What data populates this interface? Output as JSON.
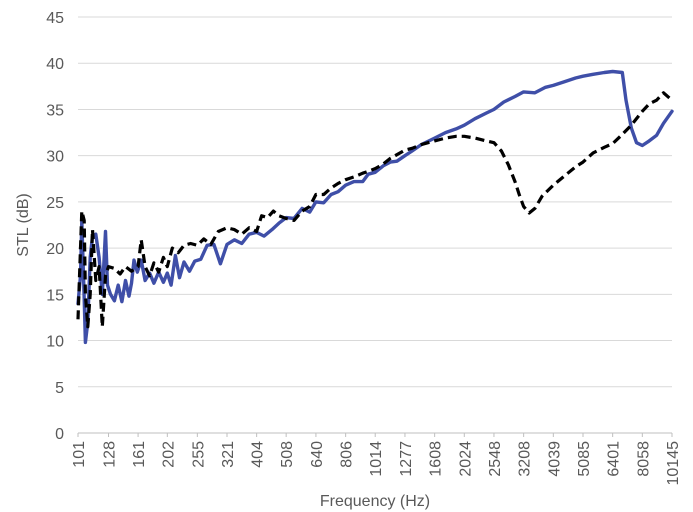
{
  "chart_data": {
    "type": "line",
    "xlabel": "Frequency (Hz)",
    "ylabel": "STL (dB)",
    "ylim": [
      0,
      45
    ],
    "yticks": [
      0,
      5,
      10,
      15,
      20,
      25,
      30,
      35,
      40,
      45
    ],
    "x_scale": "log",
    "xlim": [
      101,
      10145
    ],
    "xticks": [
      101,
      128,
      161,
      202,
      255,
      321,
      404,
      508,
      640,
      806,
      1014,
      1277,
      1608,
      2024,
      2548,
      3208,
      4039,
      5085,
      6401,
      8058,
      10145
    ],
    "grid": "horizontal",
    "legend": "none",
    "series": [
      {
        "style": "solid",
        "color": "#3f4fa8",
        "points": [
          [
            101,
            14.0
          ],
          [
            103,
            17.0
          ],
          [
            104,
            23.0
          ],
          [
            106,
            14.5
          ],
          [
            107,
            9.8
          ],
          [
            109,
            12.0
          ],
          [
            111,
            19.0
          ],
          [
            113,
            21.3
          ],
          [
            116,
            21.5
          ],
          [
            119,
            19.0
          ],
          [
            122,
            15.0
          ],
          [
            125,
            21.8
          ],
          [
            127,
            16.0
          ],
          [
            130,
            15.0
          ],
          [
            134,
            14.3
          ],
          [
            138,
            16.0
          ],
          [
            142,
            14.2
          ],
          [
            146,
            16.5
          ],
          [
            150,
            14.8
          ],
          [
            153,
            16.2
          ],
          [
            156,
            18.7
          ],
          [
            160,
            17.4
          ],
          [
            165,
            18.7
          ],
          [
            170,
            16.5
          ],
          [
            176,
            17.3
          ],
          [
            182,
            16.2
          ],
          [
            189,
            17.4
          ],
          [
            196,
            16.3
          ],
          [
            202,
            17.3
          ],
          [
            208,
            16.0
          ],
          [
            215,
            19.2
          ],
          [
            222,
            16.8
          ],
          [
            230,
            18.5
          ],
          [
            240,
            17.5
          ],
          [
            250,
            18.6
          ],
          [
            262,
            18.8
          ],
          [
            275,
            20.3
          ],
          [
            290,
            20.4
          ],
          [
            305,
            18.3
          ],
          [
            321,
            20.4
          ],
          [
            340,
            20.9
          ],
          [
            360,
            20.5
          ],
          [
            381,
            21.5
          ],
          [
            404,
            21.7
          ],
          [
            428,
            21.3
          ],
          [
            455,
            22.0
          ],
          [
            480,
            22.7
          ],
          [
            508,
            23.3
          ],
          [
            540,
            23.2
          ],
          [
            575,
            24.3
          ],
          [
            610,
            23.9
          ],
          [
            640,
            25.0
          ],
          [
            680,
            24.9
          ],
          [
            720,
            25.8
          ],
          [
            760,
            26.1
          ],
          [
            806,
            26.8
          ],
          [
            860,
            27.2
          ],
          [
            920,
            27.2
          ],
          [
            960,
            28.0
          ],
          [
            1014,
            28.2
          ],
          [
            1080,
            28.9
          ],
          [
            1140,
            29.3
          ],
          [
            1200,
            29.4
          ],
          [
            1277,
            30.0
          ],
          [
            1350,
            30.5
          ],
          [
            1450,
            31.2
          ],
          [
            1608,
            31.9
          ],
          [
            1750,
            32.5
          ],
          [
            1900,
            32.9
          ],
          [
            2024,
            33.3
          ],
          [
            2200,
            34.0
          ],
          [
            2400,
            34.6
          ],
          [
            2548,
            35.0
          ],
          [
            2750,
            35.8
          ],
          [
            3000,
            36.4
          ],
          [
            3208,
            36.9
          ],
          [
            3500,
            36.8
          ],
          [
            3800,
            37.4
          ],
          [
            4039,
            37.6
          ],
          [
            4400,
            38.0
          ],
          [
            4800,
            38.4
          ],
          [
            5085,
            38.6
          ],
          [
            5500,
            38.8
          ],
          [
            6000,
            39.0
          ],
          [
            6401,
            39.1
          ],
          [
            6900,
            39.0
          ],
          [
            7100,
            36.0
          ],
          [
            7400,
            33.0
          ],
          [
            7700,
            31.4
          ],
          [
            8058,
            31.1
          ],
          [
            8500,
            31.6
          ],
          [
            9000,
            32.2
          ],
          [
            9500,
            33.5
          ],
          [
            10145,
            34.8
          ]
        ]
      },
      {
        "style": "dashed",
        "color": "#000000",
        "points": [
          [
            101,
            12.3
          ],
          [
            103,
            20.0
          ],
          [
            104,
            24.0
          ],
          [
            106,
            23.0
          ],
          [
            107,
            15.0
          ],
          [
            109,
            11.5
          ],
          [
            111,
            15.0
          ],
          [
            113,
            22.0
          ],
          [
            116,
            16.5
          ],
          [
            119,
            18.0
          ],
          [
            122,
            11.5
          ],
          [
            125,
            17.0
          ],
          [
            128,
            18.0
          ],
          [
            134,
            17.8
          ],
          [
            140,
            17.2
          ],
          [
            146,
            18.0
          ],
          [
            153,
            17.5
          ],
          [
            161,
            18.0
          ],
          [
            165,
            20.9
          ],
          [
            170,
            18.0
          ],
          [
            176,
            17.0
          ],
          [
            182,
            18.4
          ],
          [
            189,
            17.4
          ],
          [
            196,
            19.0
          ],
          [
            202,
            18.0
          ],
          [
            210,
            20.0
          ],
          [
            220,
            19.5
          ],
          [
            230,
            20.3
          ],
          [
            242,
            20.5
          ],
          [
            255,
            20.3
          ],
          [
            268,
            21.0
          ],
          [
            283,
            20.4
          ],
          [
            300,
            21.8
          ],
          [
            321,
            22.2
          ],
          [
            340,
            22.0
          ],
          [
            360,
            21.5
          ],
          [
            381,
            22.2
          ],
          [
            404,
            21.8
          ],
          [
            420,
            23.5
          ],
          [
            440,
            23.3
          ],
          [
            460,
            24.0
          ],
          [
            480,
            23.5
          ],
          [
            508,
            23.2
          ],
          [
            540,
            23.0
          ],
          [
            575,
            24.0
          ],
          [
            610,
            24.5
          ],
          [
            640,
            25.8
          ],
          [
            680,
            25.8
          ],
          [
            720,
            26.5
          ],
          [
            760,
            27.0
          ],
          [
            806,
            27.4
          ],
          [
            860,
            27.7
          ],
          [
            920,
            28.1
          ],
          [
            960,
            28.3
          ],
          [
            1014,
            28.6
          ],
          [
            1080,
            29.1
          ],
          [
            1140,
            29.7
          ],
          [
            1200,
            30.1
          ],
          [
            1277,
            30.6
          ],
          [
            1350,
            30.8
          ],
          [
            1450,
            31.2
          ],
          [
            1608,
            31.6
          ],
          [
            1750,
            31.9
          ],
          [
            1900,
            32.1
          ],
          [
            2024,
            32.1
          ],
          [
            2200,
            31.9
          ],
          [
            2400,
            31.6
          ],
          [
            2548,
            31.4
          ],
          [
            2700,
            30.5
          ],
          [
            2850,
            29.0
          ],
          [
            3000,
            27.2
          ],
          [
            3100,
            25.8
          ],
          [
            3208,
            24.5
          ],
          [
            3350,
            23.8
          ],
          [
            3500,
            24.3
          ],
          [
            3700,
            25.6
          ],
          [
            4039,
            26.8
          ],
          [
            4400,
            27.8
          ],
          [
            4800,
            28.8
          ],
          [
            5085,
            29.3
          ],
          [
            5500,
            30.3
          ],
          [
            6000,
            30.9
          ],
          [
            6401,
            31.3
          ],
          [
            6900,
            32.3
          ],
          [
            7400,
            33.3
          ],
          [
            8058,
            34.8
          ],
          [
            8500,
            35.6
          ],
          [
            9000,
            36.0
          ],
          [
            9500,
            36.8
          ],
          [
            10145,
            36.0
          ]
        ]
      }
    ]
  }
}
